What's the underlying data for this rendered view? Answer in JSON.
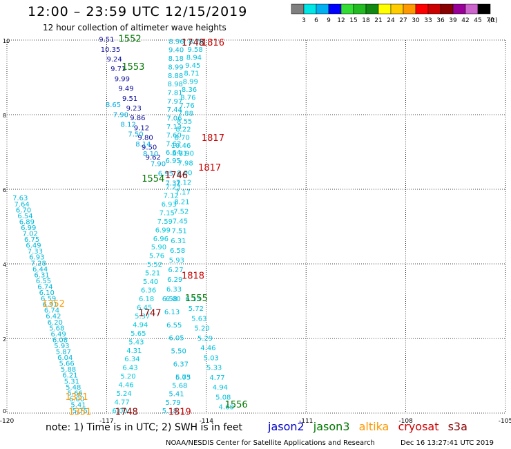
{
  "header": {
    "title": "12:00 – 23:59 UTC 12/15/2019",
    "subtitle": "12 hour collection of altimeter wave heights"
  },
  "colorbar": {
    "bins": [
      {
        "label": "3",
        "color": "#7f7f7f"
      },
      {
        "label": "6",
        "color": "#00e5e5"
      },
      {
        "label": "9",
        "color": "#00b0f0"
      },
      {
        "label": "12",
        "color": "#0000ff"
      },
      {
        "label": "15",
        "color": "#33dd33"
      },
      {
        "label": "18",
        "color": "#22bb22"
      },
      {
        "label": "21",
        "color": "#118811"
      },
      {
        "label": "24",
        "color": "#ffff00"
      },
      {
        "label": "27",
        "color": "#ffcc00"
      },
      {
        "label": "30",
        "color": "#ff9900"
      },
      {
        "label": "33",
        "color": "#ff0000"
      },
      {
        "label": "36",
        "color": "#cc0000"
      },
      {
        "label": "39",
        "color": "#880000"
      },
      {
        "label": "42",
        "color": "#990099"
      },
      {
        "label": "45",
        "color": "#cc66cc"
      },
      {
        "label": "70",
        "color": "#000000"
      }
    ],
    "unit": "(ft)"
  },
  "footer": {
    "note": "note:  1) Time is in UTC;  2) SWH is in feet",
    "credit": "NOAA/NESDIS Center for Satellite Applications and Research",
    "stamp": "Dec 16 13:27:41 UTC 2019"
  },
  "legend": [
    {
      "name": "jason2",
      "color": "#0000cc"
    },
    {
      "name": "jason3",
      "color": "#007700"
    },
    {
      "name": "altika",
      "color": "#ff9900"
    },
    {
      "name": "cryosat",
      "color": "#cc0000"
    },
    {
      "name": "s3a",
      "color": "#880000"
    }
  ],
  "chart_data": {
    "type": "scatter",
    "xlim": [
      -120,
      -105
    ],
    "ylim": [
      0,
      10
    ],
    "x_ticks": [
      "-120",
      "-117",
      "-114",
      "-111",
      "-108",
      "-105"
    ],
    "y_ticks": [
      "0",
      "2",
      "4",
      "6",
      "8",
      "10"
    ],
    "grid": true,
    "tracks": [
      {
        "satellite": "jason2",
        "color": "#0a0a9a",
        "x0": -117.0,
        "x1": -115.6,
        "y0": 9.95,
        "y1": 6.8,
        "values": [
          "9.51",
          "10.35",
          "9.24",
          "9.71",
          "9.99",
          "9.49",
          "9.51",
          "9.23",
          "9.86",
          "9.12",
          "9.80",
          "9.50",
          "9.62"
        ]
      },
      {
        "satellite": "jason2",
        "color": "#00aadd",
        "x0": -116.8,
        "x1": -115.0,
        "y0": 8.2,
        "y1": 6.1,
        "values": [
          "8.65",
          "7.90",
          "8.12",
          "7.50",
          "8.14",
          "8.10",
          "7.90",
          "6.95",
          "7.32"
        ]
      },
      {
        "satellite": "jason2",
        "color": "#00c8dc",
        "x0": -115.0,
        "x1": -116.6,
        "y0": 6.0,
        "y1": 0.0,
        "values": [
          "7.23",
          "7.12",
          "6.93",
          "7.15",
          "7.59",
          "6.99",
          "6.96",
          "5.90",
          "5.76",
          "5.52",
          "5.21",
          "5.40",
          "6.36",
          "6.18",
          "6.45",
          "5.37",
          "4.94",
          "5.65",
          "5.43",
          "4.31",
          "6.34",
          "6.43",
          "5.20",
          "4.46",
          "5.24",
          "4.77",
          "6.00"
        ]
      },
      {
        "satellite": "jason2",
        "color": "#00b8d8",
        "x0": -114.9,
        "x1": -115.0,
        "y0": 9.9,
        "y1": 6.7,
        "values": [
          "8.96",
          "9.40",
          "8.18",
          "8.99",
          "8.88",
          "8.98",
          "7.81",
          "7.97",
          "7.44",
          "7.06",
          "7.13",
          "7.60",
          "7.62",
          "6.64",
          "6.95"
        ]
      },
      {
        "satellite": "jason2",
        "color": "#00c0dc",
        "x0": -114.3,
        "x1": -114.8,
        "y0": 9.9,
        "y1": 6.9,
        "values": [
          "8.78",
          "9.58",
          "8.94",
          "9.45",
          "8.71",
          "8.99",
          "8.36",
          "8.76",
          "7.76",
          "7.88",
          "8.55",
          "8.22",
          "8.70",
          "10.46",
          "8.81"
        ]
      },
      {
        "satellite": "jason2",
        "color": "#00c0dc",
        "x0": -114.6,
        "x1": -115.0,
        "y0": 6.9,
        "y1": 3.0,
        "values": [
          "7.90",
          "7.98",
          "8.00",
          "7.12",
          "7.17",
          "8.21",
          "7.52",
          "7.45",
          "7.51",
          "6.31",
          "6.58",
          "5.93",
          "6.27",
          "6.29",
          "6.33",
          "6.00"
        ]
      },
      {
        "satellite": "jason2",
        "color": "#00c0dc",
        "x0": -114.4,
        "x1": -113.4,
        "y0": 3.0,
        "y1": 0.1,
        "values": [
          "6.13",
          "5.72",
          "5.63",
          "5.20",
          "5.29",
          "4.46",
          "5.03",
          "5.33",
          "4.77",
          "4.94",
          "5.08",
          "4.60"
        ]
      },
      {
        "satellite": "jason2",
        "color": "#00b8d8",
        "x0": -114.7,
        "x1": -115.1,
        "y0": 0.9,
        "y1": 0.0,
        "values": [
          "5.73",
          "5.68",
          "5.41",
          "5.79",
          "5.18"
        ]
      },
      {
        "satellite": "jason2",
        "color": "#00b8d8",
        "x0": -119.6,
        "x1": -117.8,
        "y0": 5.7,
        "y1": 0.0,
        "values": [
          "7.63",
          "7.64",
          "6.70",
          "6.54",
          "6.89",
          "6.99",
          "7.02",
          "6.75",
          "6.49",
          "7.33",
          "6.93",
          "7.28",
          "6.44",
          "6.31",
          "6.55",
          "6.74",
          "6.10",
          "6.59",
          "6.91",
          "6.74",
          "6.42",
          "6.20",
          "5.68",
          "6.49",
          "6.08",
          "5.93",
          "5.87",
          "6.04",
          "5.66",
          "5.88",
          "6.21",
          "5.31",
          "5.48",
          "5.66",
          "6.00",
          "5.41",
          "5.75"
        ]
      },
      {
        "satellite": "jason2",
        "color": "#00b8d8",
        "x0": -115.1,
        "x1": -114.7,
        "y0": 3.0,
        "y1": 0.9,
        "values": [
          "6.58",
          "6.13",
          "6.55",
          "6.05",
          "5.50",
          "6.37",
          "6.05"
        ]
      }
    ],
    "annotations": [
      {
        "x": -116.3,
        "y": 9.95,
        "text": "1552",
        "satellite": "jason3",
        "color": "#007700"
      },
      {
        "x": -116.2,
        "y": 9.2,
        "text": "1553",
        "satellite": "jason3",
        "color": "#007700"
      },
      {
        "x": -114.4,
        "y": 9.85,
        "text": "1748",
        "satellite": "s3a",
        "color": "#880000"
      },
      {
        "x": -113.8,
        "y": 9.85,
        "text": "1816",
        "satellite": "cryosat",
        "color": "#cc0000"
      },
      {
        "x": -113.8,
        "y": 7.3,
        "text": "1817",
        "satellite": "cryosat",
        "color": "#cc0000"
      },
      {
        "x": -113.9,
        "y": 6.5,
        "text": "1817",
        "satellite": "cryosat",
        "color": "#cc0000"
      },
      {
        "x": -114.9,
        "y": 6.3,
        "text": "1746",
        "satellite": "s3a",
        "color": "#880000"
      },
      {
        "x": -115.6,
        "y": 6.2,
        "text": "1554",
        "satellite": "jason3",
        "color": "#007700"
      },
      {
        "x": -114.4,
        "y": 3.6,
        "text": "1818",
        "satellite": "cryosat",
        "color": "#cc0000"
      },
      {
        "x": -114.3,
        "y": 3.0,
        "text": "1555",
        "satellite": "jason3",
        "color": "#007700"
      },
      {
        "x": -115.7,
        "y": 2.6,
        "text": "1747",
        "satellite": "s3a",
        "color": "#880000"
      },
      {
        "x": -118.6,
        "y": 2.85,
        "text": "1352",
        "satellite": "altika",
        "color": "#ff9900"
      },
      {
        "x": -117.9,
        "y": 0.35,
        "text": "1351",
        "satellite": "altika",
        "color": "#ff9900"
      },
      {
        "x": -117.8,
        "y": -0.05,
        "text": "1351",
        "satellite": "altika",
        "color": "#ff9900"
      },
      {
        "x": -116.4,
        "y": -0.05,
        "text": "1748",
        "satellite": "s3a",
        "color": "#880000"
      },
      {
        "x": -114.8,
        "y": -0.05,
        "text": "1819",
        "satellite": "cryosat",
        "color": "#cc0000"
      },
      {
        "x": -113.1,
        "y": 0.15,
        "text": "1556",
        "satellite": "jason3",
        "color": "#007700"
      }
    ]
  }
}
